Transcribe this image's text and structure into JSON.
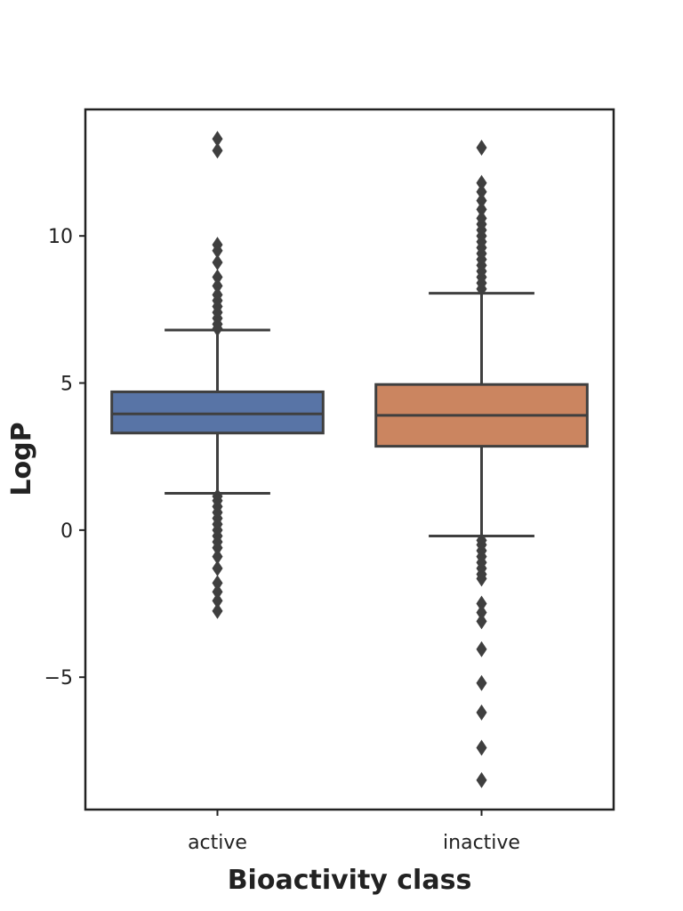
{
  "chart_data": {
    "type": "box",
    "xlabel": "Bioactivity class",
    "ylabel": "LogP",
    "ylim": [
      -9.5,
      14.3
    ],
    "yticks": [
      -5,
      0,
      5,
      10
    ],
    "ytick_labels": [
      "−5",
      "0",
      "5",
      "10"
    ],
    "categories": [
      "active",
      "inactive"
    ],
    "boxes": [
      {
        "category": "active",
        "color": "#5874a6",
        "q1": 3.3,
        "median": 3.95,
        "q3": 4.7,
        "whisker_low": 1.25,
        "whisker_high": 6.8,
        "outliers": [
          13.3,
          12.9,
          9.7,
          9.5,
          9.1,
          8.6,
          8.3,
          8.0,
          7.8,
          7.6,
          7.4,
          7.2,
          7.0,
          6.85,
          1.15,
          1.0,
          0.8,
          0.6,
          0.4,
          0.2,
          0.0,
          -0.2,
          -0.4,
          -0.6,
          -0.9,
          -1.3,
          -1.8,
          -2.1,
          -2.4,
          -2.75
        ]
      },
      {
        "category": "inactive",
        "color": "#cb8560",
        "q1": 2.85,
        "median": 3.9,
        "q3": 4.95,
        "whisker_low": -0.2,
        "whisker_high": 8.05,
        "outliers": [
          13.0,
          11.8,
          11.5,
          11.2,
          10.9,
          10.6,
          10.4,
          10.2,
          10.0,
          9.8,
          9.6,
          9.4,
          9.2,
          9.0,
          8.8,
          8.6,
          8.4,
          8.2,
          -0.35,
          -0.5,
          -0.7,
          -0.9,
          -1.1,
          -1.3,
          -1.5,
          -1.65,
          -2.5,
          -2.8,
          -3.1,
          -4.05,
          -5.2,
          -6.2,
          -7.4,
          -8.5
        ]
      }
    ]
  }
}
